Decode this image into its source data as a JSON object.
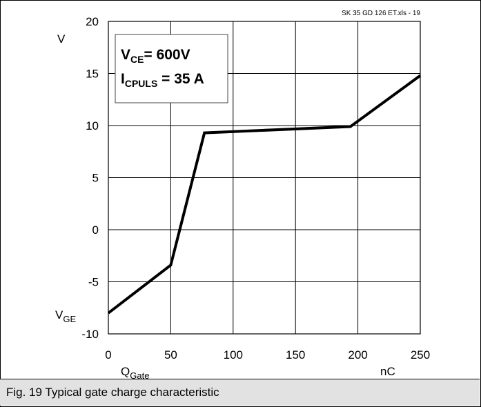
{
  "caption": "Fig. 19 Typical gate charge characteristic",
  "file_ref": "SK 35 GD 126 ET.xls - 19",
  "conditions": [
    {
      "main": "V",
      "sub": "CE",
      "rest": "= 600V"
    },
    {
      "main": "I",
      "sub": "CPULS",
      "rest": " = 35 A"
    }
  ],
  "chart_data": {
    "type": "line",
    "x_unit": "nC",
    "x_label_main": "Q",
    "x_label_sub": "Gate",
    "y_unit": "V",
    "y_label_main": "V",
    "y_label_sub": "GE",
    "xlim": [
      0,
      250
    ],
    "ylim": [
      -10,
      20
    ],
    "x_ticks": [
      0,
      50,
      100,
      150,
      200,
      250
    ],
    "y_ticks": [
      -10,
      -5,
      0,
      5,
      10,
      15,
      20
    ],
    "grid": true,
    "series": [
      {
        "x": [
          0,
          50,
          77,
          194,
          250
        ],
        "y": [
          -8,
          -3.4,
          9.3,
          9.9,
          14.8
        ]
      }
    ]
  }
}
